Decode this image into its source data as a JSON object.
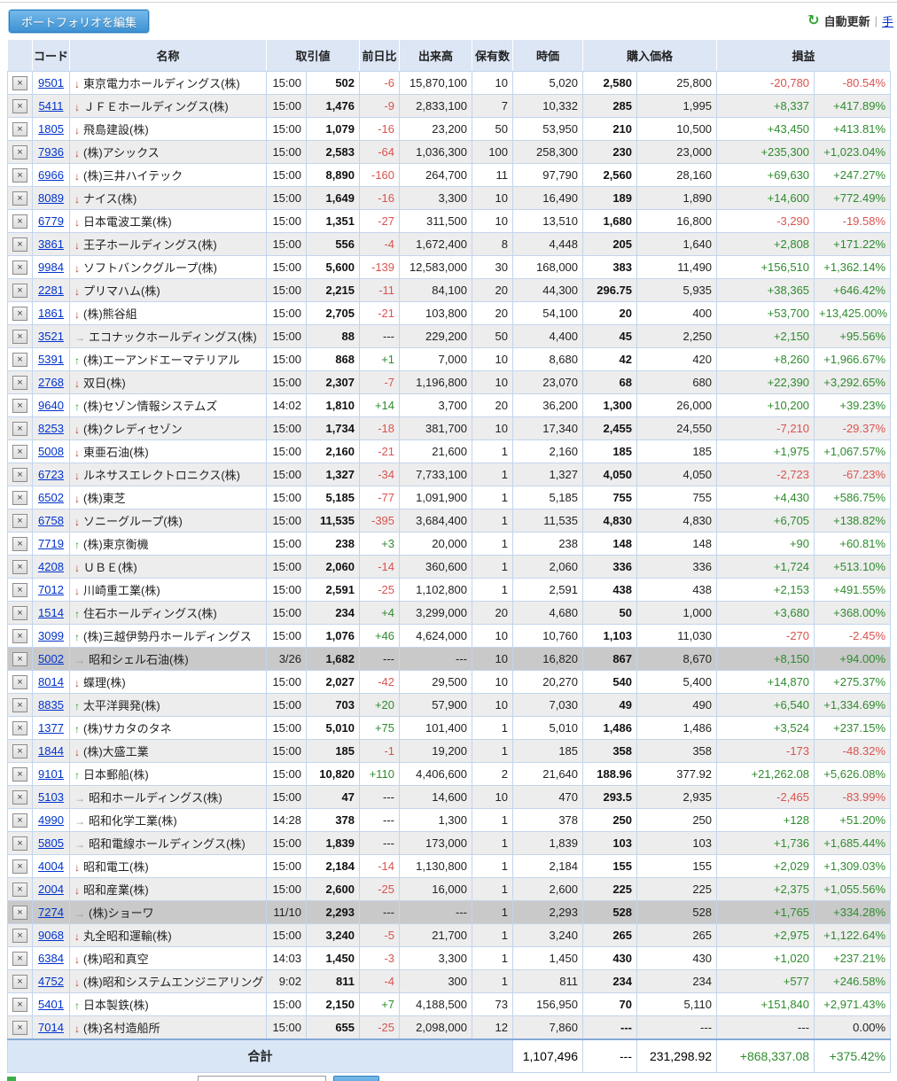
{
  "toolbar": {
    "edit_button": "ポートフォリオを編集",
    "auto_update": "自動更新",
    "separator": "|",
    "manual_update": "手"
  },
  "ui": {
    "arrows": {
      "down": "↓",
      "up": "↑",
      "flat": "→"
    },
    "delete_icon": "×",
    "refresh_icon": "↻"
  },
  "colors": {
    "positive": "#2e8b2e",
    "negative": "#d9534f",
    "link": "#0033cc",
    "header_bg": "#dce6f5",
    "special_row_bg": "#c9c9c9"
  },
  "table": {
    "headers": {
      "code": "コード",
      "name": "名称",
      "price": "取引値",
      "change": "前日比",
      "volume": "出来高",
      "holdings": "保有数",
      "market_value": "時価",
      "purchase_price": "購入価格",
      "profit_loss": "損益"
    },
    "rows": [
      {
        "code": "9501",
        "trend": "down",
        "name": "東京電力ホールディングス(株)",
        "time": "15:00",
        "price": "502",
        "change": "-6",
        "volume": "15,870,100",
        "holdings": "10",
        "mv": "5,020",
        "unit": "2,580",
        "ptotal": "25,800",
        "pl": "-20,780",
        "plpct": "-80.54%",
        "special": false
      },
      {
        "code": "5411",
        "trend": "down",
        "name": "ＪＦＥホールディングス(株)",
        "time": "15:00",
        "price": "1,476",
        "change": "-9",
        "volume": "2,833,100",
        "holdings": "7",
        "mv": "10,332",
        "unit": "285",
        "ptotal": "1,995",
        "pl": "+8,337",
        "plpct": "+417.89%",
        "special": false
      },
      {
        "code": "1805",
        "trend": "down",
        "name": "飛島建設(株)",
        "time": "15:00",
        "price": "1,079",
        "change": "-16",
        "volume": "23,200",
        "holdings": "50",
        "mv": "53,950",
        "unit": "210",
        "ptotal": "10,500",
        "pl": "+43,450",
        "plpct": "+413.81%",
        "special": false
      },
      {
        "code": "7936",
        "trend": "down",
        "name": "(株)アシックス",
        "time": "15:00",
        "price": "2,583",
        "change": "-64",
        "volume": "1,036,300",
        "holdings": "100",
        "mv": "258,300",
        "unit": "230",
        "ptotal": "23,000",
        "pl": "+235,300",
        "plpct": "+1,023.04%",
        "special": false
      },
      {
        "code": "6966",
        "trend": "down",
        "name": "(株)三井ハイテック",
        "time": "15:00",
        "price": "8,890",
        "change": "-160",
        "volume": "264,700",
        "holdings": "11",
        "mv": "97,790",
        "unit": "2,560",
        "ptotal": "28,160",
        "pl": "+69,630",
        "plpct": "+247.27%",
        "special": false
      },
      {
        "code": "8089",
        "trend": "down",
        "name": "ナイス(株)",
        "time": "15:00",
        "price": "1,649",
        "change": "-16",
        "volume": "3,300",
        "holdings": "10",
        "mv": "16,490",
        "unit": "189",
        "ptotal": "1,890",
        "pl": "+14,600",
        "plpct": "+772.49%",
        "special": false
      },
      {
        "code": "6779",
        "trend": "down",
        "name": "日本電波工業(株)",
        "time": "15:00",
        "price": "1,351",
        "change": "-27",
        "volume": "311,500",
        "holdings": "10",
        "mv": "13,510",
        "unit": "1,680",
        "ptotal": "16,800",
        "pl": "-3,290",
        "plpct": "-19.58%",
        "special": false
      },
      {
        "code": "3861",
        "trend": "down",
        "name": "王子ホールディングス(株)",
        "time": "15:00",
        "price": "556",
        "change": "-4",
        "volume": "1,672,400",
        "holdings": "8",
        "mv": "4,448",
        "unit": "205",
        "ptotal": "1,640",
        "pl": "+2,808",
        "plpct": "+171.22%",
        "special": false
      },
      {
        "code": "9984",
        "trend": "down",
        "name": "ソフトバンクグループ(株)",
        "time": "15:00",
        "price": "5,600",
        "change": "-139",
        "volume": "12,583,000",
        "holdings": "30",
        "mv": "168,000",
        "unit": "383",
        "ptotal": "11,490",
        "pl": "+156,510",
        "plpct": "+1,362.14%",
        "special": false
      },
      {
        "code": "2281",
        "trend": "down",
        "name": "プリマハム(株)",
        "time": "15:00",
        "price": "2,215",
        "change": "-11",
        "volume": "84,100",
        "holdings": "20",
        "mv": "44,300",
        "unit": "296.75",
        "ptotal": "5,935",
        "pl": "+38,365",
        "plpct": "+646.42%",
        "special": false
      },
      {
        "code": "1861",
        "trend": "down",
        "name": "(株)熊谷組",
        "time": "15:00",
        "price": "2,705",
        "change": "-21",
        "volume": "103,800",
        "holdings": "20",
        "mv": "54,100",
        "unit": "20",
        "ptotal": "400",
        "pl": "+53,700",
        "plpct": "+13,425.00%",
        "special": false
      },
      {
        "code": "3521",
        "trend": "flat",
        "name": "エコナックホールディングス(株)",
        "time": "15:00",
        "price": "88",
        "change": "---",
        "volume": "229,200",
        "holdings": "50",
        "mv": "4,400",
        "unit": "45",
        "ptotal": "2,250",
        "pl": "+2,150",
        "plpct": "+95.56%",
        "special": false
      },
      {
        "code": "5391",
        "trend": "up",
        "name": "(株)エーアンドエーマテリアル",
        "time": "15:00",
        "price": "868",
        "change": "+1",
        "volume": "7,000",
        "holdings": "10",
        "mv": "8,680",
        "unit": "42",
        "ptotal": "420",
        "pl": "+8,260",
        "plpct": "+1,966.67%",
        "special": false
      },
      {
        "code": "2768",
        "trend": "down",
        "name": "双日(株)",
        "time": "15:00",
        "price": "2,307",
        "change": "-7",
        "volume": "1,196,800",
        "holdings": "10",
        "mv": "23,070",
        "unit": "68",
        "ptotal": "680",
        "pl": "+22,390",
        "plpct": "+3,292.65%",
        "special": false
      },
      {
        "code": "9640",
        "trend": "up",
        "name": "(株)セゾン情報システムズ",
        "time": "14:02",
        "price": "1,810",
        "change": "+14",
        "volume": "3,700",
        "holdings": "20",
        "mv": "36,200",
        "unit": "1,300",
        "ptotal": "26,000",
        "pl": "+10,200",
        "plpct": "+39.23%",
        "special": false
      },
      {
        "code": "8253",
        "trend": "down",
        "name": "(株)クレディセゾン",
        "time": "15:00",
        "price": "1,734",
        "change": "-18",
        "volume": "381,700",
        "holdings": "10",
        "mv": "17,340",
        "unit": "2,455",
        "ptotal": "24,550",
        "pl": "-7,210",
        "plpct": "-29.37%",
        "special": false
      },
      {
        "code": "5008",
        "trend": "down",
        "name": "東亜石油(株)",
        "time": "15:00",
        "price": "2,160",
        "change": "-21",
        "volume": "21,600",
        "holdings": "1",
        "mv": "2,160",
        "unit": "185",
        "ptotal": "185",
        "pl": "+1,975",
        "plpct": "+1,067.57%",
        "special": false
      },
      {
        "code": "6723",
        "trend": "down",
        "name": "ルネサスエレクトロニクス(株)",
        "time": "15:00",
        "price": "1,327",
        "change": "-34",
        "volume": "7,733,100",
        "holdings": "1",
        "mv": "1,327",
        "unit": "4,050",
        "ptotal": "4,050",
        "pl": "-2,723",
        "plpct": "-67.23%",
        "special": false
      },
      {
        "code": "6502",
        "trend": "down",
        "name": "(株)東芝",
        "time": "15:00",
        "price": "5,185",
        "change": "-77",
        "volume": "1,091,900",
        "holdings": "1",
        "mv": "5,185",
        "unit": "755",
        "ptotal": "755",
        "pl": "+4,430",
        "plpct": "+586.75%",
        "special": false
      },
      {
        "code": "6758",
        "trend": "down",
        "name": "ソニーグループ(株)",
        "time": "15:00",
        "price": "11,535",
        "change": "-395",
        "volume": "3,684,400",
        "holdings": "1",
        "mv": "11,535",
        "unit": "4,830",
        "ptotal": "4,830",
        "pl": "+6,705",
        "plpct": "+138.82%",
        "special": false
      },
      {
        "code": "7719",
        "trend": "up",
        "name": "(株)東京衡機",
        "time": "15:00",
        "price": "238",
        "change": "+3",
        "volume": "20,000",
        "holdings": "1",
        "mv": "238",
        "unit": "148",
        "ptotal": "148",
        "pl": "+90",
        "plpct": "+60.81%",
        "special": false
      },
      {
        "code": "4208",
        "trend": "down",
        "name": "ＵＢＥ(株)",
        "time": "15:00",
        "price": "2,060",
        "change": "-14",
        "volume": "360,600",
        "holdings": "1",
        "mv": "2,060",
        "unit": "336",
        "ptotal": "336",
        "pl": "+1,724",
        "plpct": "+513.10%",
        "special": false
      },
      {
        "code": "7012",
        "trend": "down",
        "name": "川崎重工業(株)",
        "time": "15:00",
        "price": "2,591",
        "change": "-25",
        "volume": "1,102,800",
        "holdings": "1",
        "mv": "2,591",
        "unit": "438",
        "ptotal": "438",
        "pl": "+2,153",
        "plpct": "+491.55%",
        "special": false
      },
      {
        "code": "1514",
        "trend": "up",
        "name": "住石ホールディングス(株)",
        "time": "15:00",
        "price": "234",
        "change": "+4",
        "volume": "3,299,000",
        "holdings": "20",
        "mv": "4,680",
        "unit": "50",
        "ptotal": "1,000",
        "pl": "+3,680",
        "plpct": "+368.00%",
        "special": false
      },
      {
        "code": "3099",
        "trend": "up",
        "name": "(株)三越伊勢丹ホールディングス",
        "time": "15:00",
        "price": "1,076",
        "change": "+46",
        "volume": "4,624,000",
        "holdings": "10",
        "mv": "10,760",
        "unit": "1,103",
        "ptotal": "11,030",
        "pl": "-270",
        "plpct": "-2.45%",
        "special": false
      },
      {
        "code": "5002",
        "trend": "flat",
        "name": "昭和シェル石油(株)",
        "time": "3/26",
        "price": "1,682",
        "change": "---",
        "volume": "---",
        "holdings": "10",
        "mv": "16,820",
        "unit": "867",
        "ptotal": "8,670",
        "pl": "+8,150",
        "plpct": "+94.00%",
        "special": true
      },
      {
        "code": "8014",
        "trend": "down",
        "name": "蝶理(株)",
        "time": "15:00",
        "price": "2,027",
        "change": "-42",
        "volume": "29,500",
        "holdings": "10",
        "mv": "20,270",
        "unit": "540",
        "ptotal": "5,400",
        "pl": "+14,870",
        "plpct": "+275.37%",
        "special": false
      },
      {
        "code": "8835",
        "trend": "up",
        "name": "太平洋興発(株)",
        "time": "15:00",
        "price": "703",
        "change": "+20",
        "volume": "57,900",
        "holdings": "10",
        "mv": "7,030",
        "unit": "49",
        "ptotal": "490",
        "pl": "+6,540",
        "plpct": "+1,334.69%",
        "special": false
      },
      {
        "code": "1377",
        "trend": "up",
        "name": "(株)サカタのタネ",
        "time": "15:00",
        "price": "5,010",
        "change": "+75",
        "volume": "101,400",
        "holdings": "1",
        "mv": "5,010",
        "unit": "1,486",
        "ptotal": "1,486",
        "pl": "+3,524",
        "plpct": "+237.15%",
        "special": false
      },
      {
        "code": "1844",
        "trend": "down",
        "name": "(株)大盛工業",
        "time": "15:00",
        "price": "185",
        "change": "-1",
        "volume": "19,200",
        "holdings": "1",
        "mv": "185",
        "unit": "358",
        "ptotal": "358",
        "pl": "-173",
        "plpct": "-48.32%",
        "special": false
      },
      {
        "code": "9101",
        "trend": "up",
        "name": "日本郵船(株)",
        "time": "15:00",
        "price": "10,820",
        "change": "+110",
        "volume": "4,406,600",
        "holdings": "2",
        "mv": "21,640",
        "unit": "188.96",
        "ptotal": "377.92",
        "pl": "+21,262.08",
        "plpct": "+5,626.08%",
        "special": false
      },
      {
        "code": "5103",
        "trend": "flat",
        "name": "昭和ホールディングス(株)",
        "time": "15:00",
        "price": "47",
        "change": "---",
        "volume": "14,600",
        "holdings": "10",
        "mv": "470",
        "unit": "293.5",
        "ptotal": "2,935",
        "pl": "-2,465",
        "plpct": "-83.99%",
        "special": false
      },
      {
        "code": "4990",
        "trend": "flat",
        "name": "昭和化学工業(株)",
        "time": "14:28",
        "price": "378",
        "change": "---",
        "volume": "1,300",
        "holdings": "1",
        "mv": "378",
        "unit": "250",
        "ptotal": "250",
        "pl": "+128",
        "plpct": "+51.20%",
        "special": false
      },
      {
        "code": "5805",
        "trend": "flat",
        "name": "昭和電線ホールディングス(株)",
        "time": "15:00",
        "price": "1,839",
        "change": "---",
        "volume": "173,000",
        "holdings": "1",
        "mv": "1,839",
        "unit": "103",
        "ptotal": "103",
        "pl": "+1,736",
        "plpct": "+1,685.44%",
        "special": false
      },
      {
        "code": "4004",
        "trend": "down",
        "name": "昭和電工(株)",
        "time": "15:00",
        "price": "2,184",
        "change": "-14",
        "volume": "1,130,800",
        "holdings": "1",
        "mv": "2,184",
        "unit": "155",
        "ptotal": "155",
        "pl": "+2,029",
        "plpct": "+1,309.03%",
        "special": false
      },
      {
        "code": "2004",
        "trend": "down",
        "name": "昭和産業(株)",
        "time": "15:00",
        "price": "2,600",
        "change": "-25",
        "volume": "16,000",
        "holdings": "1",
        "mv": "2,600",
        "unit": "225",
        "ptotal": "225",
        "pl": "+2,375",
        "plpct": "+1,055.56%",
        "special": false
      },
      {
        "code": "7274",
        "trend": "flat",
        "name": "(株)ショーワ",
        "time": "11/10",
        "price": "2,293",
        "change": "---",
        "volume": "---",
        "holdings": "1",
        "mv": "2,293",
        "unit": "528",
        "ptotal": "528",
        "pl": "+1,765",
        "plpct": "+334.28%",
        "special": true
      },
      {
        "code": "9068",
        "trend": "down",
        "name": "丸全昭和運輸(株)",
        "time": "15:00",
        "price": "3,240",
        "change": "-5",
        "volume": "21,700",
        "holdings": "1",
        "mv": "3,240",
        "unit": "265",
        "ptotal": "265",
        "pl": "+2,975",
        "plpct": "+1,122.64%",
        "special": false
      },
      {
        "code": "6384",
        "trend": "down",
        "name": "(株)昭和真空",
        "time": "14:03",
        "price": "1,450",
        "change": "-3",
        "volume": "3,300",
        "holdings": "1",
        "mv": "1,450",
        "unit": "430",
        "ptotal": "430",
        "pl": "+1,020",
        "plpct": "+237.21%",
        "special": false
      },
      {
        "code": "4752",
        "trend": "down",
        "name": "(株)昭和システムエンジニアリング",
        "time": "9:02",
        "price": "811",
        "change": "-4",
        "volume": "300",
        "holdings": "1",
        "mv": "811",
        "unit": "234",
        "ptotal": "234",
        "pl": "+577",
        "plpct": "+246.58%",
        "special": false
      },
      {
        "code": "5401",
        "trend": "up",
        "name": "日本製鉄(株)",
        "time": "15:00",
        "price": "2,150",
        "change": "+7",
        "volume": "4,188,500",
        "holdings": "73",
        "mv": "156,950",
        "unit": "70",
        "ptotal": "5,110",
        "pl": "+151,840",
        "plpct": "+2,971.43%",
        "special": false
      },
      {
        "code": "7014",
        "trend": "down",
        "name": "(株)名村造船所",
        "time": "15:00",
        "price": "655",
        "change": "-25",
        "volume": "2,098,000",
        "holdings": "12",
        "mv": "7,860",
        "unit": "---",
        "ptotal": "---",
        "pl": "---",
        "plpct": "0.00%",
        "special": false
      }
    ],
    "total": {
      "label": "合計",
      "market_value": "1,107,496",
      "unit_price": "---",
      "total_price": "231,298.92",
      "pl_amount": "+868,337.08",
      "pl_percent": "+375.42%"
    }
  }
}
